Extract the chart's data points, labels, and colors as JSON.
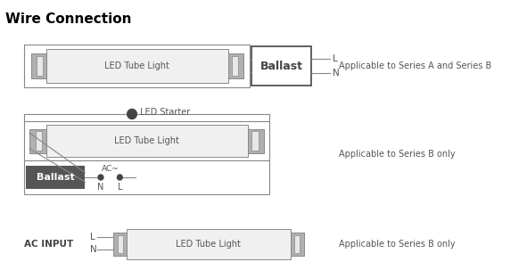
{
  "title": "Wire Connection",
  "title_fontsize": 11,
  "title_fontweight": "bold",
  "bg_color": "#ffffff",
  "line_color": "#888888",
  "dark_color": "#444444",
  "text_color": "#555555",
  "ballast_bg": "#555555",
  "ballast_text": "#ffffff",
  "note1": "Applicable to Series A and Series B",
  "note2": "Applicable to Series B only",
  "note3": "Applicable to Series B only",
  "d1_tube_label": "LED Tube Light",
  "d1_ballast_label": "Ballast",
  "d1_L": "L",
  "d1_N": "N",
  "d2_tube_label": "LED Tube Light",
  "d2_ballast_label": "Ballast",
  "d2_starter_label": "LED Starter",
  "d2_ac_label": "AC~",
  "d2_N": "N",
  "d2_L": "L",
  "d3_tube_label": "LED Tube Light",
  "d3_acinput": "AC INPUT",
  "d3_L": "L",
  "d3_N": "N"
}
